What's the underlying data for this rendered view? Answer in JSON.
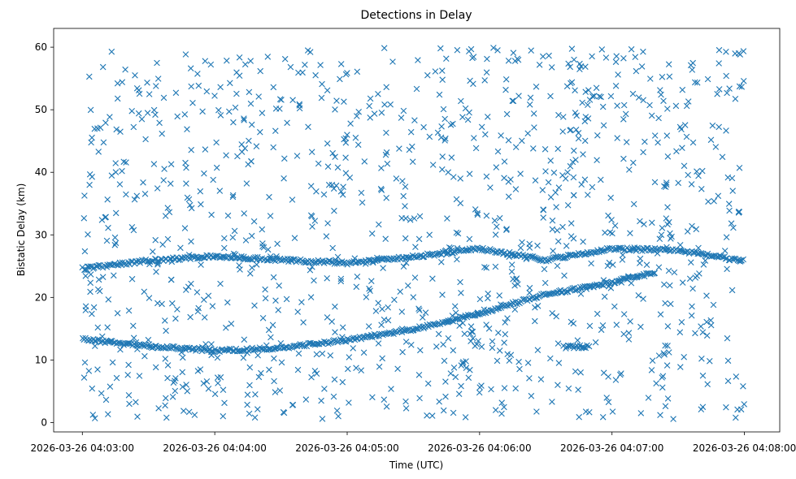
{
  "chart_data": {
    "type": "scatter",
    "title": "Detections in Delay",
    "xlabel": "Time (UTC)",
    "ylabel": "Bistatic Delay (km)",
    "marker": "x",
    "color": "#1f77b4",
    "x_range": [
      "2026-03-26 04:02:47",
      "2026-03-26 04:08:16"
    ],
    "ylim": [
      -1.5,
      63
    ],
    "x_ticks": [
      "2026-03-26 04:03:00",
      "2026-03-26 04:04:00",
      "2026-03-26 04:05:00",
      "2026-03-26 04:06:00",
      "2026-03-26 04:07:00",
      "2026-03-26 04:08:00"
    ],
    "y_ticks": [
      0,
      10,
      20,
      30,
      40,
      50,
      60
    ],
    "grid": false,
    "legend": "none",
    "tracks": [
      {
        "description": "main track",
        "points": [
          [
            "2026-03-26 04:03:00",
            13.3
          ],
          [
            "2026-03-26 04:03:30",
            12.2
          ],
          [
            "2026-03-26 04:04:00",
            11.5
          ],
          [
            "2026-03-26 04:04:30",
            11.9
          ],
          [
            "2026-03-26 04:05:00",
            13.2
          ],
          [
            "2026-03-26 04:05:30",
            14.9
          ],
          [
            "2026-03-26 04:06:00",
            17.4
          ],
          [
            "2026-03-26 04:06:30",
            20.5
          ],
          [
            "2026-03-26 04:07:00",
            22.4
          ],
          [
            "2026-03-26 04:07:20",
            24.0
          ]
        ]
      },
      {
        "description": "upper track",
        "points": [
          [
            "2026-03-26 04:03:00",
            24.6
          ],
          [
            "2026-03-26 04:03:30",
            25.9
          ],
          [
            "2026-03-26 04:04:00",
            26.6
          ],
          [
            "2026-03-26 04:04:30",
            26.0
          ],
          [
            "2026-03-26 04:05:00",
            25.5
          ],
          [
            "2026-03-26 04:05:30",
            26.5
          ],
          [
            "2026-03-26 04:06:00",
            27.8
          ],
          [
            "2026-03-26 04:06:30",
            26.0
          ],
          [
            "2026-03-26 04:07:00",
            27.8
          ],
          [
            "2026-03-26 04:07:30",
            27.5
          ],
          [
            "2026-03-26 04:08:00",
            25.8
          ]
        ]
      },
      {
        "description": "short segment",
        "points": [
          [
            "2026-03-26 04:06:38",
            12.1
          ],
          [
            "2026-03-26 04:06:50",
            12.1
          ]
        ]
      }
    ],
    "clutter": {
      "description": "uniformly scattered detections",
      "x_range": [
        "2026-03-26 04:03:00",
        "2026-03-26 04:08:00"
      ],
      "y_range": [
        0.5,
        60
      ],
      "count": 1150
    }
  }
}
